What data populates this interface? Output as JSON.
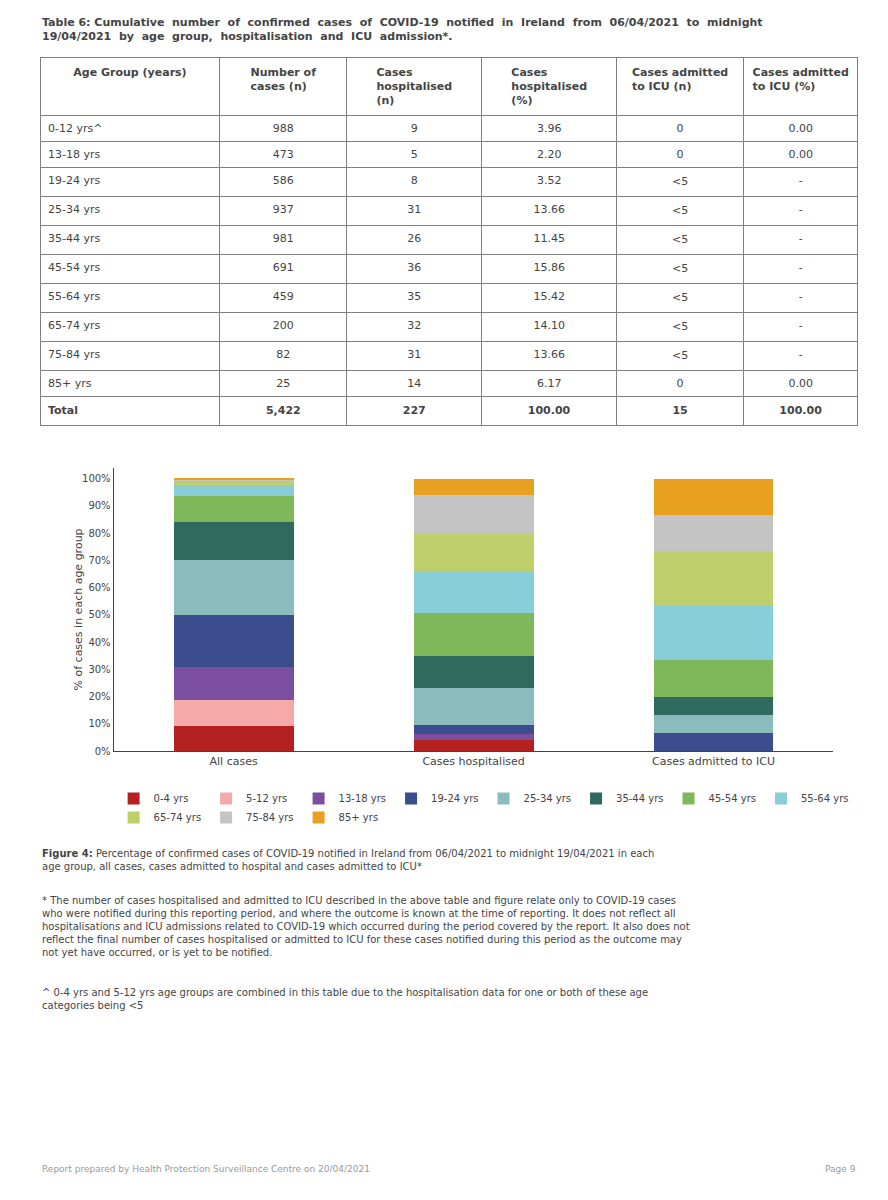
{
  "chart_data": [
    {
      "type": "table",
      "title": "Table 6: Cumulative  number  of  confirmed  cases  of  COVID-19  notified  in  Ireland  from  06/04/2021  to  midnight\n19/04/2021  by  age  group,  hospitalisation  and  ICU  admission*.",
      "columns": [
        "Age Group (years)",
        "Number of\ncases (n)",
        "Cases\nhospitalised\n(n)",
        "Cases\nhospitalised\n(%)",
        "Cases admitted\nto ICU (n)",
        "Cases admitted\nto ICU (%)"
      ],
      "rows": [
        [
          "0-12 yrs^",
          "988",
          "9",
          "3.96",
          "0",
          "0.00"
        ],
        [
          "13-18 yrs",
          "473",
          "5",
          "2.20",
          "0",
          "0.00"
        ],
        [
          "19-24 yrs",
          "586",
          "8",
          "3.52",
          "<5",
          "-"
        ],
        [
          "25-34 yrs",
          "937",
          "31",
          "13.66",
          "<5",
          "-"
        ],
        [
          "35-44 yrs",
          "981",
          "26",
          "11.45",
          "<5",
          "-"
        ],
        [
          "45-54 yrs",
          "691",
          "36",
          "15.86",
          "<5",
          "-"
        ],
        [
          "55-64 yrs",
          "459",
          "35",
          "15.42",
          "<5",
          "-"
        ],
        [
          "65-74 yrs",
          "200",
          "32",
          "14.10",
          "<5",
          "-"
        ],
        [
          "75-84 yrs",
          "82",
          "31",
          "13.66",
          "<5",
          "-"
        ],
        [
          "85+ yrs",
          "25",
          "14",
          "6.17",
          "0",
          "0.00"
        ],
        [
          "Total",
          "5,422",
          "227",
          "100.00",
          "15",
          "100.00"
        ]
      ]
    },
    {
      "type": "bar",
      "stacked": true,
      "categories": [
        "All cases",
        "Cases hospitalised",
        "Cases admitted to ICU"
      ],
      "series": [
        {
          "name": "0-4 yrs",
          "color": "#B52020",
          "values": [
            9.1,
            3.96,
            0.0
          ]
        },
        {
          "name": "5-12 yrs",
          "color": "#F5AAAA",
          "values": [
            9.6778,
            0.0,
            0.0
          ]
        },
        {
          "name": "13-18 yrs",
          "color": "#7B4EA0",
          "values": [
            12.0,
            2.2,
            0.0
          ]
        },
        {
          "name": "19-24 yrs",
          "color": "#3B4D8C",
          "values": [
            19.2,
            3.52,
            6.6693
          ]
        },
        {
          "name": "25-34 yrs",
          "color": "#8BBCBD",
          "values": [
            20.1,
            13.66,
            6.6693
          ]
        },
        {
          "name": "35-44 yrs",
          "color": "#2E6B5E",
          "values": [
            14.1556,
            11.45,
            6.6693
          ]
        },
        {
          "name": "45-54 yrs",
          "color": "#7EB85A",
          "values": [
            9.4,
            15.86,
            13.3287
          ]
        },
        {
          "name": "55-64 yrs",
          "color": "#89CDD8",
          "values": [
            4.1,
            15.42,
            19.998
          ]
        },
        {
          "name": "65-74 yrs",
          "color": "#BFCF6B",
          "values": [
            1.6778,
            14.1,
            19.998
          ]
        },
        {
          "name": "75-84 yrs",
          "color": "#C4C4C4",
          "values": [
            0.5111,
            13.66,
            13.3287
          ]
        },
        {
          "name": "85+ yrs",
          "color": "#E8A020",
          "values": [
            0.0778,
            6.17,
            13.3387
          ]
        }
      ],
      "ylabel": "% of cases in each age group",
      "ylim": [
        0,
        104
      ],
      "yticks": [
        {
          "value": 0,
          "label": "0%"
        },
        {
          "value": 10,
          "label": "10%"
        },
        {
          "value": 20,
          "label": "20%"
        },
        {
          "value": 30,
          "label": "30%"
        },
        {
          "value": 40,
          "label": "40%"
        },
        {
          "value": 50,
          "label": "50%"
        },
        {
          "value": 60,
          "label": "60%"
        },
        {
          "value": 70,
          "label": "70%"
        },
        {
          "value": 80,
          "label": "80%"
        },
        {
          "value": 90,
          "label": "90%"
        },
        {
          "value": 100,
          "label": "100%"
        }
      ],
      "grid": false,
      "legend": "bottom",
      "annotations": [
        "Figure 4:",
        " Percentage of confirmed cases of COVID-19 notified in Ireland from 06/04/2021 to midnight 19/04/2021 in each\nage group, all cases, cases admitted to hospital and cases admitted to ICU*",
        "* The number of cases hospitalised and admitted to ICU described in the above table and figure relate only to COVID-19 cases\nwho were notified during this reporting period, and where the outcome is known at the time of reporting. It does not reflect all\nhospitalisations and ICU admissions related to COVID-19 which occurred during the period covered by the report. It also does not\nreflect the final number of cases hospitalised or admitted to ICU for these cases notified during this period as the outcome may\nnot yet have occurred, or is yet to be notified.",
        "^ 0-4 yrs and 5-12 yrs age groups are combined in this table due to the hospitalisation data for one or both of these age\ncategories being <5",
        "Report prepared by Health Protection Surveillance Centre on 20/04/2021",
        "Page 9"
      ]
    }
  ]
}
